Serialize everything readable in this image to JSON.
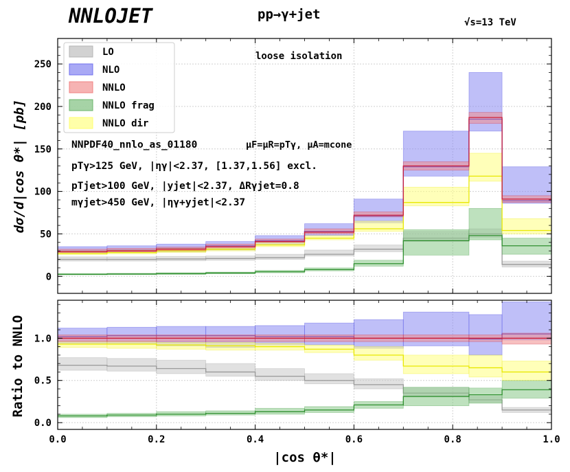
{
  "header": {
    "logo": "NNLOJET",
    "process": "pp→γ+jet",
    "energy": "√s=13 TeV"
  },
  "annotations": {
    "isolation": "loose isolation",
    "pdf_line": "NNPDF40_nnlo_as_01180",
    "scales_line": "μF=μR=pTγ, μA=mcone",
    "cut_photon": "pTγ>125 GeV, |ηγ|<2.37, [1.37,1.56] excl.",
    "cut_jet": "pTjet>100 GeV, |yjet|<2.37, ΔRγjet=0.8",
    "cut_mass": "mγjet>450 GeV, |ηγ+yjet|<2.37"
  },
  "legend": [
    {
      "label": "LO",
      "color": "#b4b4b4"
    },
    {
      "label": "NLO",
      "color": "#7070ee"
    },
    {
      "label": "NNLO",
      "color": "#f08080"
    },
    {
      "label": "NNLO frag",
      "color": "#6ab56a"
    },
    {
      "label": "NNLO dir",
      "color": "#ffff70"
    }
  ],
  "colors": {
    "LO": {
      "fill": "#c8c8c8",
      "line": "#999999"
    },
    "NLO": {
      "fill": "#8a8af2",
      "line": "#2b2bdc"
    },
    "NNLO": {
      "fill": "#f08c8c",
      "line": "#cc1f3a"
    },
    "NNLO frag": {
      "fill": "#88c888",
      "line": "#2f8f2f"
    },
    "NNLO dir": {
      "fill": "#ffff80",
      "line": "#e8e800"
    }
  },
  "chart_data": [
    {
      "type": "area",
      "title": "pp→γ+jet",
      "xlabel": "|cos θ*|",
      "ylabel": "dσ/d|cos θ*| [pb]",
      "xlim": [
        0.0,
        1.0
      ],
      "ylim": [
        -20,
        280
      ],
      "yticks": [
        0,
        50,
        100,
        150,
        200,
        250
      ],
      "bins": [
        0.0,
        0.1,
        0.2,
        0.3,
        0.4,
        0.5,
        0.6,
        0.7,
        0.833,
        0.9,
        1.0
      ],
      "series": [
        {
          "name": "LO",
          "central": [
            20,
            20,
            20.5,
            21,
            22,
            26,
            32,
            45,
            50,
            14
          ],
          "lower": [
            18,
            18,
            18.5,
            19,
            20,
            24,
            29,
            41,
            46,
            11
          ],
          "upper": [
            23,
            23,
            23.5,
            24,
            26,
            31,
            37,
            53,
            56,
            18
          ]
        },
        {
          "name": "NLO",
          "central": [
            30,
            31,
            33,
            36,
            42,
            53,
            71,
            129,
            185,
            89
          ],
          "lower": [
            27,
            28,
            29,
            31,
            38,
            48,
            63,
            118,
            171,
            86
          ],
          "upper": [
            35,
            36,
            38,
            41,
            48,
            62,
            91,
            171,
            240,
            129
          ]
        },
        {
          "name": "NNLO",
          "central": [
            29,
            30,
            32,
            35,
            41,
            52,
            72,
            130,
            187,
            91
          ],
          "lower": [
            28,
            29,
            30.5,
            33.5,
            40,
            50,
            70,
            125,
            180,
            87
          ],
          "upper": [
            32,
            33,
            34.5,
            38,
            44,
            56,
            76,
            135,
            193,
            95
          ]
        },
        {
          "name": "NNLO frag",
          "central": [
            2.5,
            2.8,
            3.3,
            4,
            5.5,
            8,
            15,
            42,
            48,
            36
          ],
          "lower": [
            1.8,
            2,
            2.3,
            3,
            4.2,
            6.5,
            12,
            25,
            43,
            26
          ],
          "upper": [
            3.2,
            3.6,
            4.2,
            5,
            7,
            10,
            19,
            55,
            80,
            45
          ]
        },
        {
          "name": "NNLO dir",
          "central": [
            27,
            28,
            30,
            32,
            37,
            45,
            56,
            87,
            118,
            54
          ],
          "lower": [
            25.5,
            26.5,
            28,
            30,
            35,
            43,
            53,
            83,
            112,
            50
          ],
          "upper": [
            30,
            31,
            33,
            35,
            40,
            48,
            65,
            105,
            145,
            68
          ]
        }
      ]
    },
    {
      "type": "area",
      "xlabel": "|cos θ*|",
      "ylabel": "Ratio to NNLO",
      "xlim": [
        0.0,
        1.0
      ],
      "ylim": [
        -0.08,
        1.45
      ],
      "yticks": [
        0.0,
        0.5,
        1.0
      ],
      "xticks": [
        0.0,
        0.2,
        0.4,
        0.6,
        0.8,
        1.0
      ],
      "bins": [
        0.0,
        0.1,
        0.2,
        0.3,
        0.4,
        0.5,
        0.6,
        0.7,
        0.833,
        0.9,
        1.0
      ],
      "series": [
        {
          "name": "LO",
          "central": [
            0.68,
            0.67,
            0.64,
            0.6,
            0.55,
            0.5,
            0.45,
            0.35,
            0.27,
            0.15
          ],
          "lower": [
            0.62,
            0.61,
            0.58,
            0.55,
            0.5,
            0.46,
            0.4,
            0.32,
            0.24,
            0.12
          ],
          "upper": [
            0.77,
            0.76,
            0.74,
            0.7,
            0.64,
            0.58,
            0.52,
            0.41,
            0.31,
            0.18
          ]
        },
        {
          "name": "NLO",
          "central": [
            1.02,
            1.03,
            1.03,
            1.03,
            1.02,
            1.02,
            1.0,
            1.0,
            0.99,
            1.05
          ],
          "lower": [
            0.93,
            0.93,
            0.91,
            0.89,
            0.92,
            0.92,
            0.88,
            0.91,
            0.8,
            0.98
          ],
          "upper": [
            1.12,
            1.13,
            1.14,
            1.14,
            1.15,
            1.18,
            1.22,
            1.31,
            1.28,
            1.43
          ]
        },
        {
          "name": "NNLO",
          "central": [
            1.0,
            1.0,
            1.0,
            1.0,
            1.0,
            1.0,
            1.0,
            1.0,
            1.0,
            1.0
          ],
          "lower": [
            0.96,
            0.96,
            0.96,
            0.96,
            0.96,
            0.96,
            0.96,
            0.96,
            0.96,
            0.93
          ],
          "upper": [
            1.04,
            1.04,
            1.04,
            1.04,
            1.04,
            1.04,
            1.04,
            1.04,
            1.04,
            1.06
          ]
        },
        {
          "name": "NNLO frag",
          "central": [
            0.08,
            0.09,
            0.1,
            0.11,
            0.13,
            0.15,
            0.21,
            0.31,
            0.33,
            0.39
          ],
          "lower": [
            0.06,
            0.07,
            0.08,
            0.09,
            0.1,
            0.12,
            0.17,
            0.2,
            0.23,
            0.29
          ],
          "upper": [
            0.1,
            0.11,
            0.13,
            0.14,
            0.17,
            0.19,
            0.25,
            0.42,
            0.41,
            0.5
          ]
        },
        {
          "name": "NNLO dir",
          "central": [
            0.93,
            0.93,
            0.92,
            0.91,
            0.9,
            0.87,
            0.8,
            0.67,
            0.65,
            0.6
          ],
          "lower": [
            0.89,
            0.88,
            0.87,
            0.86,
            0.86,
            0.83,
            0.74,
            0.58,
            0.54,
            0.5
          ],
          "upper": [
            0.96,
            0.96,
            0.95,
            0.95,
            0.94,
            0.92,
            0.9,
            0.8,
            0.8,
            0.73
          ]
        }
      ]
    }
  ]
}
